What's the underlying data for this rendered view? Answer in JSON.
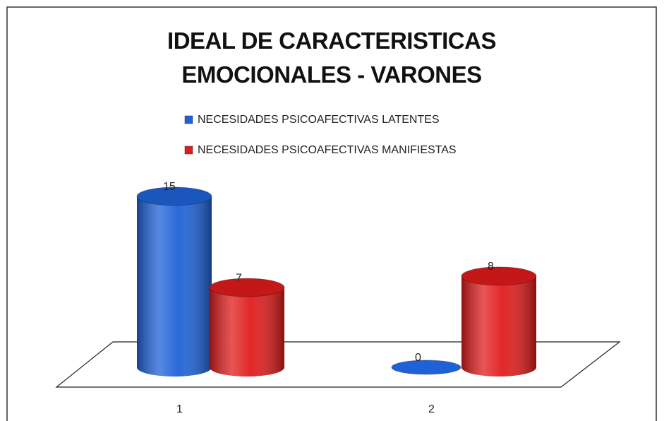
{
  "chart_data": {
    "type": "bar3d-cylinder",
    "title": "IDEAL DE CARACTERISTICAS EMOCIONALES - VARONES",
    "categories": [
      "1",
      "2"
    ],
    "series": [
      {
        "name": "NECESIDADES PSICOAFECTIVAS LATENTES",
        "color": "#1f62d8",
        "values": [
          15,
          0
        ]
      },
      {
        "name": "NECESIDADES PSICOAFECTIVAS MANIFIESTAS",
        "color": "#e01c1c",
        "values": [
          7,
          8
        ]
      }
    ],
    "legend": "top"
  }
}
